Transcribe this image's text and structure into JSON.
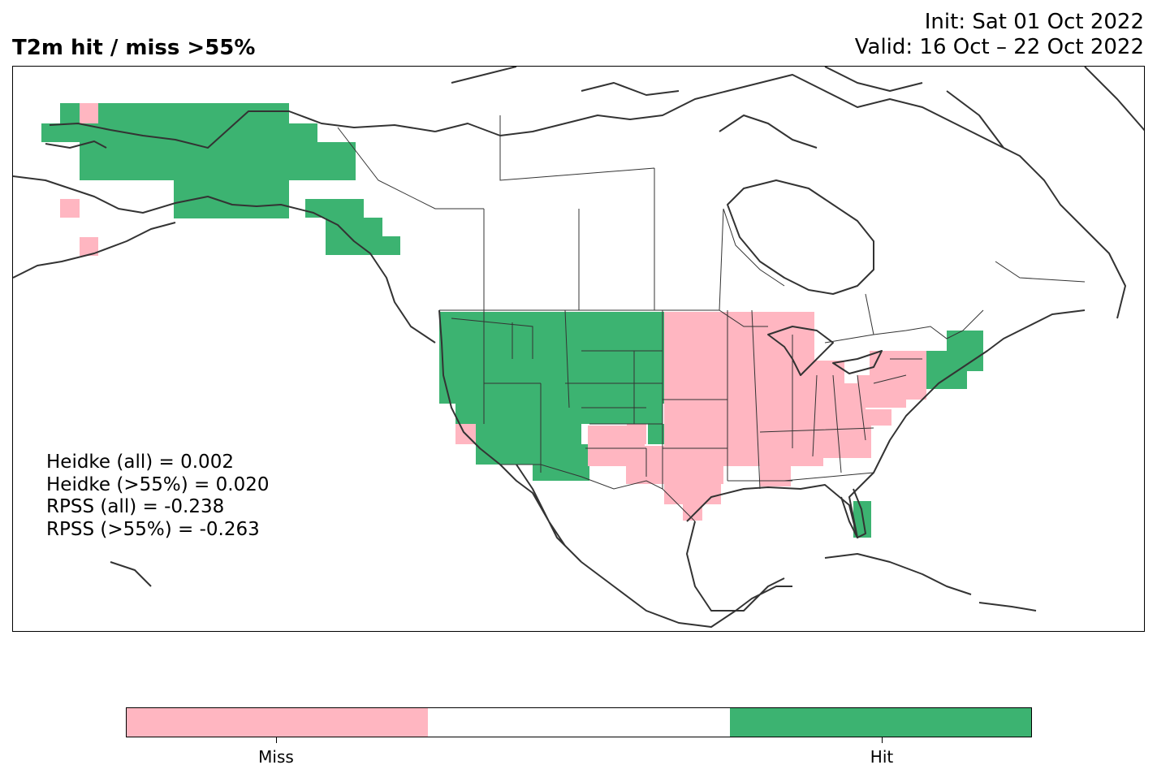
{
  "header": {
    "title": "T2m hit / miss  >55%",
    "init_line": "Init: Sat 01 Oct 2022",
    "valid_line": "Valid: 16 Oct – 22 Oct 2022"
  },
  "scores": [
    "Heidke (all) = 0.002",
    "Heidke (>55%) = 0.020",
    "RPSS (all) = -0.238",
    "RPSS (>55%) = -0.263"
  ],
  "colors": {
    "miss": "#ffb6c1",
    "neutral": "#ffffff",
    "hit": "#3cb371",
    "outline": "#333333"
  },
  "legend": {
    "labels": [
      "Miss",
      "Hit"
    ]
  }
}
